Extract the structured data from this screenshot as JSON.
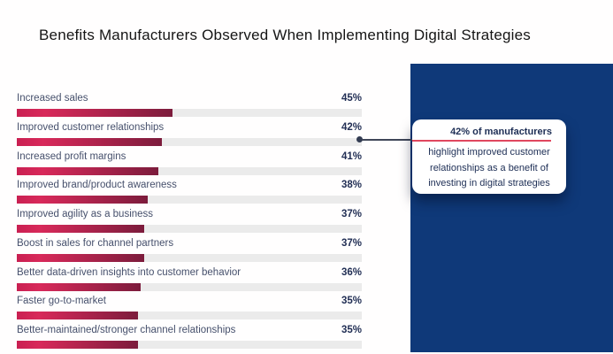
{
  "title": "Benefits Manufacturers Observed When Implementing Digital Strategies",
  "chart_data": {
    "type": "bar",
    "orientation": "horizontal",
    "title": "Benefits Manufacturers Observed When Implementing Digital Strategies",
    "xlabel": "",
    "ylabel": "",
    "xlim": [
      0,
      100
    ],
    "unit": "%",
    "grid": false,
    "legend": null,
    "categories": [
      "Increased sales",
      "Improved customer relationships",
      "Increased profit margins",
      "Improved brand/product awareness",
      "Improved agility as a business",
      "Boost in sales for channel partners",
      "Better data-driven insights into customer behavior",
      "Faster go-to-market",
      "Better-maintained/stronger channel relationships"
    ],
    "values": [
      45,
      42,
      41,
      38,
      37,
      37,
      36,
      35,
      35
    ],
    "value_labels": [
      "45%",
      "42%",
      "41%",
      "38%",
      "37%",
      "37%",
      "36%",
      "35%",
      "35%"
    ],
    "highlight_index": 1
  },
  "callout": {
    "heading": "42% of manufacturers",
    "body": "highlight improved customer relationships as a benefit of investing in digital strategies",
    "target_category": "Improved customer relationships"
  },
  "colors": {
    "panel": "#0f3979",
    "bar_gradient_start": "#c92052",
    "bar_gradient_mid": "#d8295a",
    "bar_gradient_end": "#7c1c3c",
    "track": "#ebebeb",
    "label_text": "#46506c",
    "value_text": "#222f55",
    "title_text": "#151515",
    "divider": "#e0475e",
    "connector": "#3f4658",
    "callout_text": "#1d2e55"
  }
}
